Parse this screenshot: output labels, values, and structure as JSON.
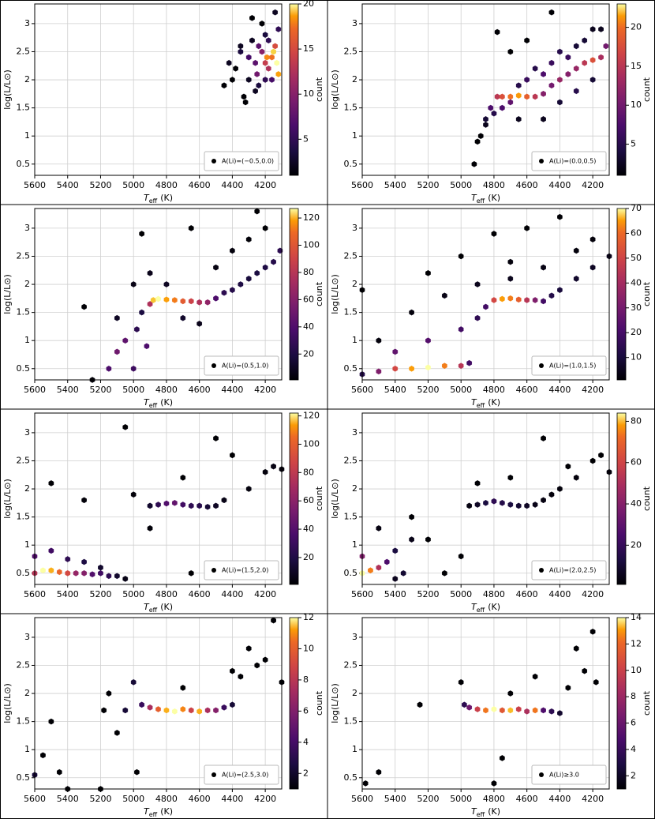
{
  "chart_data": [
    {
      "type": "hexbin",
      "cmap": "inferno",
      "grid": true,
      "legend_label": "A(Li)=(−0.5,0.0)",
      "xlabel_symbol": "T",
      "xlabel_subscript": "eff",
      "xlabel_unit": "(K)",
      "ylabel": "log(L/L⊙)",
      "clabel": "count",
      "xlim": [
        5600,
        4100
      ],
      "ylim": [
        0.3,
        3.35
      ],
      "xticks": [
        5600,
        5400,
        5200,
        5000,
        4800,
        4600,
        4400,
        4200
      ],
      "yticks": [
        0.5,
        1.0,
        1.5,
        2.0,
        2.5,
        3.0
      ],
      "clim": [
        1,
        20
      ],
      "cticks": [
        5,
        10,
        15,
        20
      ],
      "x": [
        4450,
        4420,
        4380,
        4350,
        4330,
        4300,
        4280,
        4260,
        4240,
        4220,
        4200,
        4180,
        4160,
        4140,
        4120,
        4300,
        4250,
        4200,
        4150,
        4120,
        4350,
        4280,
        4220,
        4180,
        4140,
        4400,
        4320,
        4260,
        4200,
        4160,
        4130,
        4240,
        4190
      ],
      "y": [
        1.9,
        2.3,
        2.2,
        2.5,
        1.7,
        2.0,
        2.7,
        2.3,
        1.9,
        2.5,
        2.8,
        2.2,
        2.4,
        2.6,
        2.1,
        2.4,
        2.1,
        2.3,
        2.5,
        2.9,
        2.6,
        3.1,
        3.0,
        2.7,
        3.2,
        2.0,
        1.6,
        1.8,
        2.0,
        2.0,
        2.3,
        2.6,
        2.4
      ],
      "values": [
        1,
        2,
        1,
        3,
        1,
        2,
        2,
        6,
        3,
        8,
        3,
        10,
        14,
        12,
        16,
        5,
        7,
        11,
        18,
        4,
        2,
        1,
        1,
        4,
        2,
        1,
        1,
        2,
        4,
        5,
        20,
        6,
        15
      ]
    },
    {
      "type": "hexbin",
      "cmap": "inferno",
      "grid": true,
      "legend_label": "A(Li)=(0.0,0.5)",
      "xlabel_symbol": "T",
      "xlabel_subscript": "eff",
      "xlabel_unit": "(K)",
      "ylabel": "log(L/L⊙)",
      "clabel": "count",
      "xlim": [
        5600,
        4100
      ],
      "ylim": [
        0.3,
        3.35
      ],
      "xticks": [
        5600,
        5400,
        5200,
        5000,
        4800,
        4600,
        4400,
        4200
      ],
      "yticks": [
        0.5,
        1.0,
        1.5,
        2.0,
        2.5,
        3.0
      ],
      "clim": [
        1,
        23
      ],
      "cticks": [
        5,
        10,
        15,
        20
      ],
      "x": [
        4920,
        4880,
        4850,
        4820,
        4780,
        4750,
        4700,
        4650,
        4600,
        4550,
        4500,
        4450,
        4400,
        4350,
        4300,
        4250,
        4200,
        4150,
        4120,
        4850,
        4800,
        4750,
        4700,
        4650,
        4600,
        4550,
        4500,
        4450,
        4400,
        4350,
        4300,
        4250,
        4200,
        4150,
        4780,
        4650,
        4500,
        4400,
        4300,
        4200,
        4900,
        4700,
        4600,
        4450
      ],
      "y": [
        0.5,
        1.0,
        1.3,
        1.5,
        1.7,
        1.7,
        1.7,
        1.72,
        1.7,
        1.7,
        1.75,
        1.9,
        2.0,
        2.1,
        2.2,
        2.3,
        2.35,
        2.4,
        2.6,
        1.2,
        1.4,
        1.5,
        1.6,
        1.9,
        2.0,
        2.2,
        2.1,
        2.3,
        2.5,
        2.4,
        2.6,
        2.7,
        2.9,
        2.9,
        2.85,
        1.3,
        1.3,
        1.6,
        1.8,
        2.0,
        0.9,
        2.5,
        2.7,
        3.2
      ],
      "values": [
        1,
        1,
        3,
        6,
        12,
        14,
        16,
        18,
        15,
        12,
        9,
        8,
        10,
        9,
        10,
        12,
        14,
        11,
        8,
        2,
        4,
        6,
        7,
        4,
        5,
        4,
        6,
        5,
        4,
        5,
        3,
        3,
        2,
        2,
        1,
        2,
        2,
        3,
        4,
        3,
        1,
        1,
        1,
        1
      ]
    },
    {
      "type": "hexbin",
      "cmap": "inferno",
      "grid": true,
      "legend_label": "A(Li)=(0.5,1.0)",
      "xlabel_symbol": "T",
      "xlabel_subscript": "eff",
      "xlabel_unit": "(K)",
      "ylabel": "log(L/L⊙)",
      "clabel": "count",
      "xlim": [
        5600,
        4100
      ],
      "ylim": [
        0.3,
        3.35
      ],
      "xticks": [
        5600,
        5400,
        5200,
        5000,
        4800,
        4600,
        4400,
        4200
      ],
      "yticks": [
        0.5,
        1.0,
        1.5,
        2.0,
        2.5,
        3.0
      ],
      "clim": [
        1,
        127
      ],
      "cticks": [
        20,
        40,
        60,
        80,
        100,
        120
      ],
      "x": [
        5250,
        5150,
        5100,
        5050,
        5000,
        4980,
        4950,
        4920,
        4900,
        4880,
        4850,
        4800,
        4750,
        4700,
        4650,
        4600,
        4550,
        4500,
        4450,
        4400,
        4350,
        4300,
        4250,
        4200,
        4150,
        4110,
        5100,
        5000,
        4900,
        4800,
        4700,
        4600,
        4500,
        4400,
        4300,
        4200,
        5300,
        4950,
        4650,
        4250
      ],
      "y": [
        0.3,
        0.5,
        0.8,
        1.0,
        0.5,
        1.2,
        1.5,
        0.9,
        1.65,
        1.72,
        1.74,
        1.73,
        1.72,
        1.7,
        1.7,
        1.68,
        1.68,
        1.75,
        1.85,
        1.9,
        2.0,
        2.1,
        2.2,
        2.3,
        2.4,
        2.6,
        1.4,
        2.0,
        2.2,
        2.0,
        1.4,
        1.3,
        2.3,
        2.6,
        2.8,
        3.0,
        1.6,
        2.9,
        3.0,
        3.3
      ],
      "values": [
        2,
        30,
        40,
        35,
        25,
        20,
        15,
        30,
        60,
        110,
        127,
        100,
        90,
        80,
        70,
        60,
        50,
        30,
        20,
        18,
        16,
        14,
        15,
        16,
        18,
        20,
        8,
        5,
        6,
        8,
        10,
        6,
        4,
        3,
        2,
        1,
        1,
        1,
        1,
        1
      ]
    },
    {
      "type": "hexbin",
      "cmap": "inferno",
      "grid": true,
      "legend_label": "A(Li)=(1.0,1.5)",
      "xlabel_symbol": "T",
      "xlabel_subscript": "eff",
      "xlabel_unit": "(K)",
      "ylabel": "log(L/L⊙)",
      "clabel": "count",
      "xlim": [
        5600,
        4100
      ],
      "ylim": [
        0.3,
        3.35
      ],
      "xticks": [
        5600,
        5400,
        5200,
        5000,
        4800,
        4600,
        4400,
        4200
      ],
      "yticks": [
        0.5,
        1.0,
        1.5,
        2.0,
        2.5,
        3.0
      ],
      "clim": [
        1,
        70
      ],
      "cticks": [
        10,
        20,
        30,
        40,
        50,
        60,
        70
      ],
      "x": [
        5600,
        5500,
        5400,
        5300,
        5200,
        5100,
        5000,
        4950,
        5400,
        5200,
        5000,
        4900,
        4850,
        4800,
        4750,
        4700,
        4650,
        4600,
        4550,
        4500,
        4450,
        4400,
        4300,
        4200,
        4100,
        5500,
        5300,
        5100,
        4900,
        4700,
        4500,
        4300,
        4200,
        5600,
        5000,
        4800,
        4600,
        4400,
        4700,
        5200
      ],
      "y": [
        0.4,
        0.45,
        0.5,
        0.5,
        0.52,
        0.55,
        0.55,
        0.6,
        0.8,
        1.0,
        1.2,
        1.4,
        1.6,
        1.72,
        1.74,
        1.75,
        1.73,
        1.72,
        1.72,
        1.7,
        1.8,
        1.9,
        2.1,
        2.3,
        2.5,
        1.0,
        1.5,
        1.8,
        2.0,
        2.1,
        2.3,
        2.6,
        2.8,
        1.9,
        2.5,
        2.9,
        3.0,
        3.2,
        2.4,
        2.2
      ],
      "values": [
        10,
        25,
        40,
        55,
        70,
        50,
        35,
        15,
        20,
        18,
        15,
        12,
        15,
        40,
        55,
        50,
        45,
        35,
        25,
        15,
        10,
        8,
        6,
        5,
        4,
        2,
        2,
        3,
        4,
        4,
        3,
        2,
        2,
        1,
        1,
        1,
        1,
        1,
        2,
        1
      ]
    },
    {
      "type": "hexbin",
      "cmap": "inferno",
      "grid": true,
      "legend_label": "A(Li)=(1.5,2.0)",
      "xlabel_symbol": "T",
      "xlabel_subscript": "eff",
      "xlabel_unit": "(K)",
      "ylabel": "log(L/L⊙)",
      "clabel": "count",
      "xlim": [
        5600,
        4100
      ],
      "ylim": [
        0.3,
        3.35
      ],
      "xticks": [
        5600,
        5400,
        5200,
        5000,
        4800,
        4600,
        4400,
        4200
      ],
      "yticks": [
        0.5,
        1.0,
        1.5,
        2.0,
        2.5,
        3.0
      ],
      "clim": [
        1,
        122
      ],
      "cticks": [
        20,
        40,
        60,
        80,
        100,
        120
      ],
      "x": [
        5600,
        5550,
        5500,
        5450,
        5400,
        5350,
        5300,
        5250,
        5200,
        5150,
        5100,
        5050,
        5600,
        5500,
        5400,
        5300,
        5200,
        4900,
        4850,
        4800,
        4750,
        4700,
        4650,
        4600,
        4550,
        4500,
        4450,
        4300,
        4200,
        4150,
        4100,
        5500,
        5300,
        5000,
        4900,
        4700,
        4400,
        4500,
        5050,
        4650
      ],
      "y": [
        0.5,
        0.55,
        0.55,
        0.52,
        0.5,
        0.5,
        0.5,
        0.48,
        0.5,
        0.45,
        0.45,
        0.4,
        0.8,
        0.9,
        0.75,
        0.7,
        0.6,
        1.7,
        1.72,
        1.74,
        1.75,
        1.72,
        1.7,
        1.7,
        1.68,
        1.7,
        1.8,
        2.0,
        2.3,
        2.4,
        2.35,
        2.1,
        1.8,
        1.9,
        1.3,
        2.2,
        2.6,
        2.9,
        3.1,
        0.5
      ],
      "values": [
        60,
        122,
        100,
        80,
        70,
        50,
        45,
        30,
        25,
        20,
        10,
        5,
        30,
        25,
        20,
        15,
        10,
        10,
        20,
        30,
        35,
        25,
        20,
        18,
        12,
        8,
        5,
        3,
        3,
        4,
        3,
        1,
        2,
        2,
        2,
        1,
        1,
        1,
        1,
        1
      ]
    },
    {
      "type": "hexbin",
      "cmap": "inferno",
      "grid": true,
      "legend_label": "A(Li)=(2.0,2.5)",
      "xlabel_symbol": "T",
      "xlabel_subscript": "eff",
      "xlabel_unit": "(K)",
      "ylabel": "log(L/L⊙)",
      "clabel": "count",
      "xlim": [
        5600,
        4100
      ],
      "ylim": [
        0.3,
        3.35
      ],
      "xticks": [
        5600,
        5400,
        5200,
        5000,
        4800,
        4600,
        4400,
        4200
      ],
      "yticks": [
        0.5,
        1.0,
        1.5,
        2.0,
        2.5,
        3.0
      ],
      "clim": [
        1,
        84
      ],
      "cticks": [
        20,
        40,
        60,
        80
      ],
      "x": [
        5600,
        5550,
        5500,
        5600,
        5450,
        5400,
        5350,
        5300,
        5500,
        5400,
        4950,
        4900,
        4850,
        4800,
        4750,
        4700,
        4650,
        4600,
        4550,
        4500,
        4450,
        4400,
        4300,
        4200,
        4150,
        4100,
        5200,
        5000,
        4900,
        4500,
        4350,
        4700,
        5100,
        5300
      ],
      "y": [
        0.5,
        0.55,
        0.6,
        0.8,
        0.7,
        0.9,
        0.5,
        1.1,
        1.3,
        0.4,
        1.7,
        1.72,
        1.75,
        1.78,
        1.75,
        1.72,
        1.7,
        1.7,
        1.72,
        1.8,
        1.9,
        2.0,
        2.2,
        2.5,
        2.6,
        2.3,
        1.1,
        0.8,
        2.1,
        2.9,
        2.4,
        2.2,
        0.5,
        1.5
      ],
      "values": [
        84,
        60,
        40,
        30,
        20,
        10,
        8,
        4,
        3,
        5,
        3,
        6,
        10,
        14,
        12,
        10,
        8,
        6,
        4,
        3,
        2,
        2,
        2,
        1,
        1,
        2,
        1,
        1,
        1,
        1,
        1,
        1,
        1,
        1
      ]
    },
    {
      "type": "hexbin",
      "cmap": "inferno",
      "grid": true,
      "legend_label": "A(Li)=(2.5,3.0)",
      "xlabel_symbol": "T",
      "xlabel_subscript": "eff",
      "xlabel_unit": "(K)",
      "ylabel": "log(L/L⊙)",
      "clabel": "count",
      "xlim": [
        5600,
        4100
      ],
      "ylim": [
        0.3,
        3.35
      ],
      "xticks": [
        5600,
        5400,
        5200,
        5000,
        4800,
        4600,
        4400,
        4200
      ],
      "yticks": [
        0.5,
        1.0,
        1.5,
        2.0,
        2.5,
        3.0
      ],
      "clim": [
        1,
        12
      ],
      "cticks": [
        2,
        4,
        6,
        8,
        10,
        12
      ],
      "x": [
        5600,
        5550,
        5500,
        5450,
        5400,
        5200,
        5150,
        5100,
        5050,
        5000,
        4950,
        4900,
        4850,
        4800,
        4750,
        4700,
        4650,
        4600,
        4550,
        4500,
        4450,
        4400,
        4350,
        4300,
        4250,
        4200,
        4150,
        4100,
        5180,
        4980,
        4700,
        4400
      ],
      "y": [
        0.55,
        0.9,
        1.5,
        0.6,
        0.3,
        0.3,
        2.0,
        1.3,
        1.7,
        2.2,
        1.8,
        1.75,
        1.72,
        1.7,
        1.68,
        1.72,
        1.7,
        1.68,
        1.7,
        1.7,
        1.75,
        1.8,
        2.3,
        2.8,
        2.5,
        2.6,
        3.3,
        2.2,
        1.7,
        0.6,
        2.1,
        2.4
      ],
      "values": [
        2,
        1,
        1,
        1,
        1,
        1,
        1,
        1,
        2,
        2,
        3,
        6,
        8,
        10,
        12,
        9,
        7,
        10,
        6,
        5,
        3,
        2,
        1,
        1,
        1,
        1,
        1,
        1,
        1,
        1,
        1,
        1
      ]
    },
    {
      "type": "hexbin",
      "cmap": "inferno",
      "grid": true,
      "legend_label": "A(Li)≥3.0",
      "xlabel_symbol": "T",
      "xlabel_subscript": "eff",
      "xlabel_unit": "(K)",
      "ylabel": "log(L/L⊙)",
      "clabel": "count",
      "xlim": [
        5600,
        4100
      ],
      "ylim": [
        0.3,
        3.35
      ],
      "xticks": [
        5600,
        5400,
        5200,
        5000,
        4800,
        4600,
        4400,
        4200
      ],
      "yticks": [
        0.5,
        1.0,
        1.5,
        2.0,
        2.5,
        3.0
      ],
      "clim": [
        1,
        14
      ],
      "cticks": [
        2,
        4,
        6,
        8,
        10,
        12,
        14
      ],
      "x": [
        5580,
        5500,
        5250,
        5000,
        4980,
        4950,
        4900,
        4850,
        4800,
        4750,
        4700,
        4650,
        4600,
        4550,
        4500,
        4450,
        4400,
        4350,
        4300,
        4250,
        4200,
        4180,
        4550,
        4750,
        4700,
        4800
      ],
      "y": [
        0.4,
        0.6,
        1.8,
        2.2,
        1.8,
        1.75,
        1.72,
        1.7,
        1.72,
        1.7,
        1.7,
        1.72,
        1.68,
        1.7,
        1.7,
        1.68,
        1.65,
        2.1,
        2.8,
        2.4,
        3.1,
        2.2,
        2.3,
        0.85,
        2.0,
        0.4
      ],
      "values": [
        1,
        1,
        1,
        1,
        3,
        5,
        8,
        10,
        14,
        9,
        12,
        8,
        7,
        10,
        4,
        3,
        2,
        1,
        1,
        1,
        1,
        1,
        1,
        1,
        1,
        1
      ]
    }
  ]
}
